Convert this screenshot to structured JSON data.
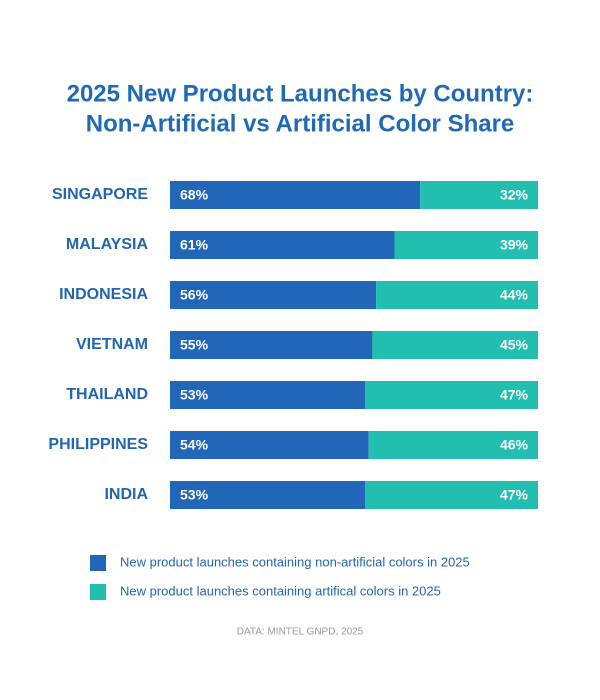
{
  "chart_data": {
    "type": "stacked-bar-horizontal",
    "title": [
      "2025 New Product Launches by Country:",
      "Non-Artificial vs Artificial Color Share"
    ],
    "categories": [
      "SINGAPORE",
      "MALAYSIA",
      "INDONESIA",
      "VIETNAM",
      "THAILAND",
      "PHILIPPINES",
      "INDIA"
    ],
    "series": [
      {
        "name": "New product launches containing non-artificial colors in 2025",
        "color": "#2266b8",
        "values": [
          68,
          61,
          56,
          55,
          53,
          54,
          53
        ],
        "value_labels": [
          "68%",
          "61%",
          "56%",
          "55%",
          "53%",
          "54%",
          "53%"
        ]
      },
      {
        "name": "New product launches containing artifical colors in 2025",
        "color": "#22bfb1",
        "values": [
          32,
          39,
          44,
          45,
          47,
          46,
          47
        ],
        "value_labels": [
          "32%",
          "39%",
          "44%",
          "45%",
          "47%",
          "46%",
          "47%"
        ]
      }
    ],
    "xlim": [
      0,
      100
    ],
    "source": "DATA: MINTEL GNPD, 2025"
  }
}
